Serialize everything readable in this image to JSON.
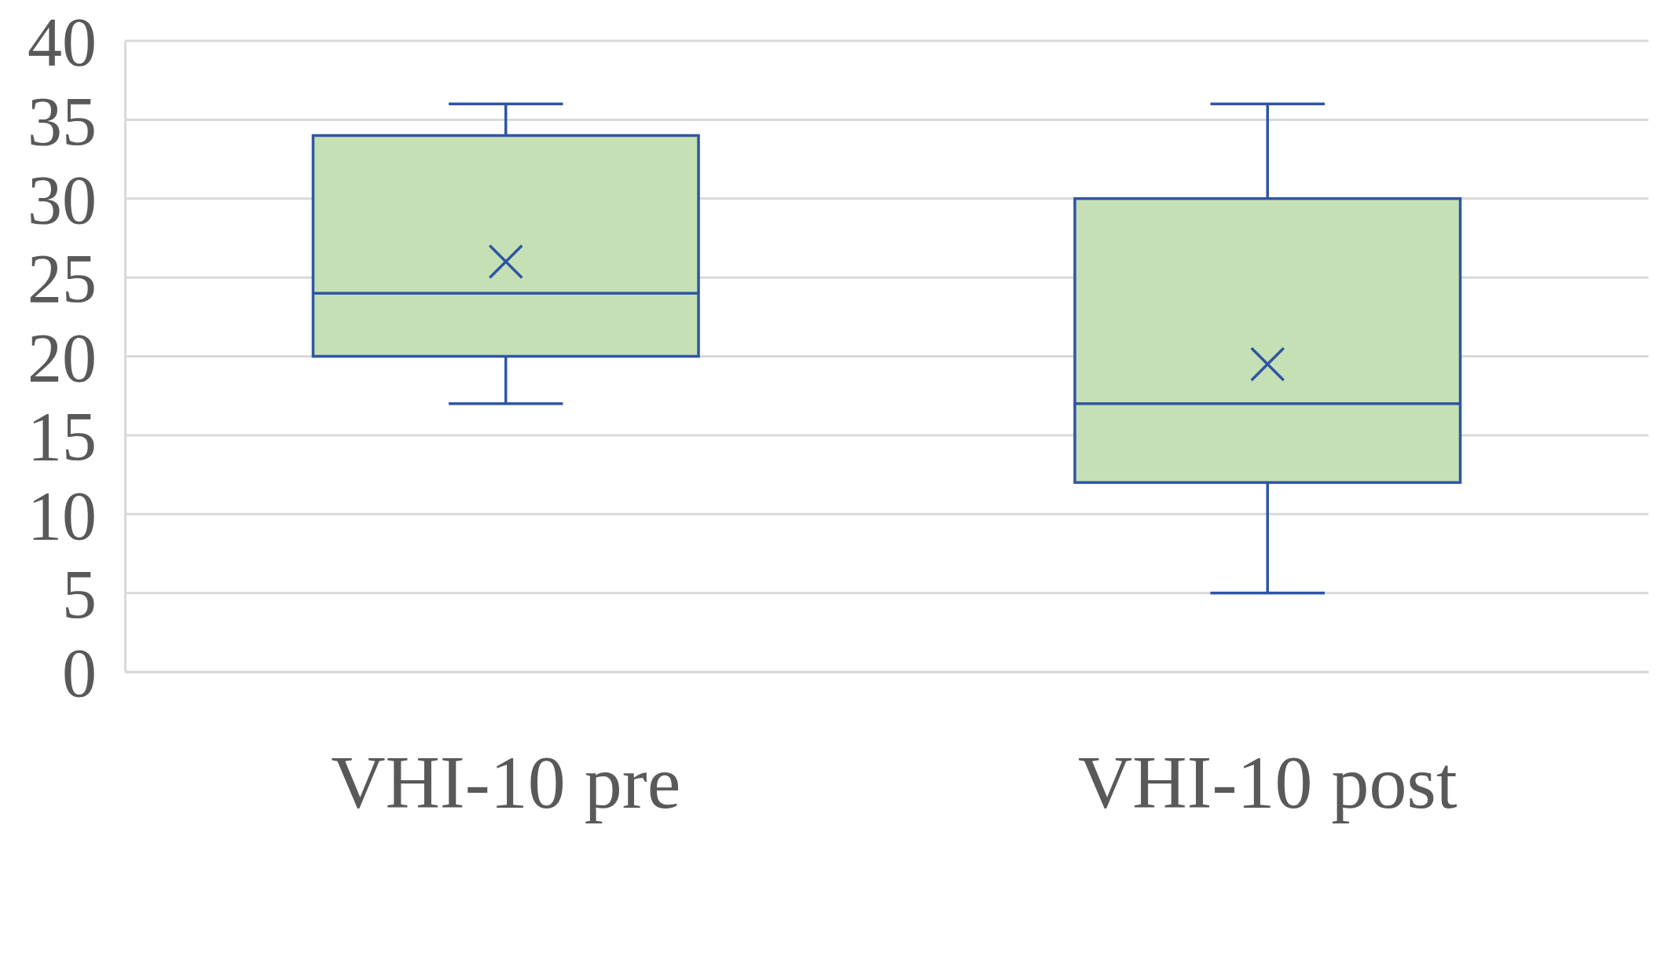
{
  "chart_data": {
    "type": "box",
    "categories": [
      "VHI-10 pre",
      "VHI-10 post"
    ],
    "series": [
      {
        "color": "#c5e0b4",
        "boxes": [
          {
            "low": 17,
            "q1": 20,
            "median": 24,
            "q3": 34,
            "high": 36,
            "mean": 26
          },
          {
            "low": 5,
            "q1": 12,
            "median": 17,
            "q3": 30,
            "high": 36,
            "mean": 19.5
          }
        ]
      }
    ],
    "ylim": [
      0,
      40
    ],
    "yticks": [
      0,
      5,
      10,
      15,
      20,
      25,
      30,
      35,
      40
    ],
    "grid": "y",
    "marker": "cross"
  }
}
